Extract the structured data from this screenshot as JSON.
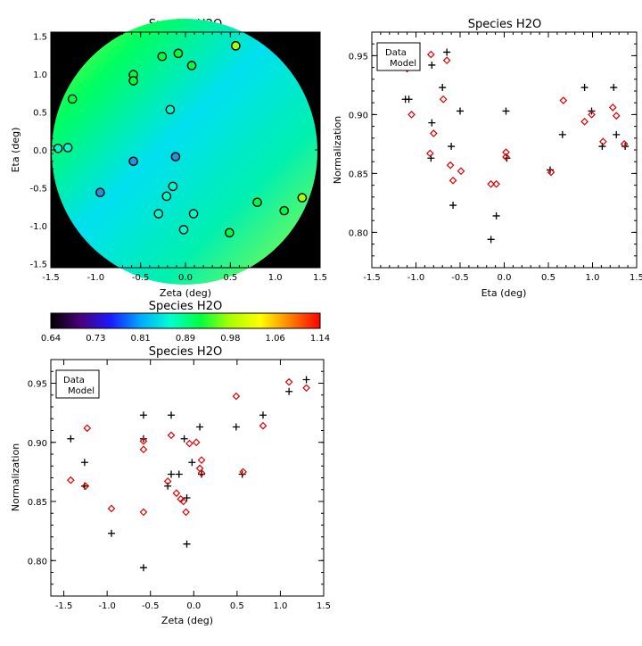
{
  "chart_data": [
    {
      "type": "scatter",
      "title": "Species H2O",
      "xlabel": "Zeta (deg)",
      "ylabel": "Eta (deg)",
      "xlim": [
        -1.5,
        1.5
      ],
      "ylim": [
        -1.55,
        1.55
      ],
      "xticks": [
        -1.5,
        -1.0,
        -0.5,
        0.0,
        0.5,
        1.0,
        1.5
      ],
      "xtick_labels": [
        "-1.5",
        "-1.0",
        "-0.5",
        "0.0",
        "0.5",
        "1.0",
        "1.5"
      ],
      "yticks": [
        -1.5,
        -1.0,
        -0.5,
        0.0,
        0.5,
        1.0,
        1.5
      ],
      "ytick_labels": [
        "-1.5",
        "-1.0",
        "-0.5",
        "0.0",
        "0.5",
        "1.0",
        "1.5"
      ],
      "background": "field map of normalization (colour scale shown in colorbar), black outside the circular field",
      "field_colors": {
        "outside": "#000000",
        "low": "#00e0f0",
        "mid": "#00f0b0",
        "high": "#00ff60",
        "edge": "#a0ff30"
      },
      "marker_fill_color": "#2ad6a8",
      "points": [
        {
          "zeta": -1.42,
          "eta": 0.02,
          "value": 0.87
        },
        {
          "zeta": -1.31,
          "eta": 0.03,
          "value": 0.88
        },
        {
          "zeta": -1.26,
          "eta": 0.67,
          "value": 0.92
        },
        {
          "zeta": -0.95,
          "eta": -0.56,
          "value": 0.82
        },
        {
          "zeta": -0.58,
          "eta": -0.15,
          "value": 0.79
        },
        {
          "zeta": -0.58,
          "eta": 0.99,
          "value": 0.89
        },
        {
          "zeta": -0.58,
          "eta": 0.91,
          "value": 0.89
        },
        {
          "zeta": -0.3,
          "eta": -0.84,
          "value": 0.87
        },
        {
          "zeta": -0.26,
          "eta": 1.23,
          "value": 0.92
        },
        {
          "zeta": -0.21,
          "eta": -0.61,
          "value": 0.86
        },
        {
          "zeta": -0.17,
          "eta": 0.53,
          "value": 0.85
        },
        {
          "zeta": -0.14,
          "eta": -0.48,
          "value": 0.86
        },
        {
          "zeta": -0.11,
          "eta": -0.09,
          "value": 0.81
        },
        {
          "zeta": -0.08,
          "eta": 1.27,
          "value": 0.92
        },
        {
          "zeta": -0.02,
          "eta": -1.05,
          "value": 0.88
        },
        {
          "zeta": 0.07,
          "eta": 1.11,
          "value": 0.91
        },
        {
          "zeta": 0.09,
          "eta": -0.84,
          "value": 0.87
        },
        {
          "zeta": 0.49,
          "eta": -1.09,
          "value": 0.9
        },
        {
          "zeta": 0.56,
          "eta": 1.37,
          "value": 0.95
        },
        {
          "zeta": 0.8,
          "eta": -0.69,
          "value": 0.9
        },
        {
          "zeta": 1.1,
          "eta": -0.8,
          "value": 0.93
        },
        {
          "zeta": 1.3,
          "eta": -0.63,
          "value": 0.95
        }
      ]
    },
    {
      "type": "scatter",
      "title": "Species H2O",
      "xlabel": "Eta (deg)",
      "ylabel": "Normalization",
      "xlim": [
        -1.5,
        1.5
      ],
      "ylim": [
        0.77,
        0.97
      ],
      "xticks": [
        -1.5,
        -1.0,
        -0.5,
        0.0,
        0.5,
        1.0,
        1.5
      ],
      "xtick_labels": [
        "-1.5",
        "-1.0",
        "-0.5",
        "0.0",
        "0.5",
        "1.0",
        "1.5"
      ],
      "yticks": [
        0.8,
        0.85,
        0.9,
        0.95
      ],
      "ytick_labels": [
        "0.80",
        "0.85",
        "0.90",
        "0.95"
      ],
      "legend_position": "top-left",
      "series": [
        {
          "name": "Data",
          "marker": "plus",
          "color": "#000000",
          "x": [
            -1.12,
            -1.08,
            -0.82,
            -0.83,
            -0.82,
            -0.7,
            -0.65,
            -0.6,
            -0.58,
            -0.5,
            -0.15,
            -0.09,
            0.02,
            0.03,
            0.52,
            0.66,
            0.91,
            0.99,
            1.11,
            1.24,
            1.27,
            1.37
          ],
          "y": [
            0.913,
            0.913,
            0.942,
            0.863,
            0.893,
            0.923,
            0.953,
            0.873,
            0.823,
            0.903,
            0.794,
            0.814,
            0.903,
            0.863,
            0.853,
            0.883,
            0.923,
            0.903,
            0.873,
            0.923,
            0.883,
            0.873
          ]
        },
        {
          "name": "Model",
          "marker": "diamond",
          "color": "#dd0000",
          "x": [
            -1.1,
            -1.05,
            -0.83,
            -0.8,
            -0.84,
            -0.69,
            -0.65,
            -0.61,
            -0.58,
            -0.49,
            -0.15,
            -0.09,
            0.02,
            0.02,
            0.53,
            0.67,
            0.91,
            0.99,
            1.12,
            1.23,
            1.27,
            1.36
          ],
          "y": [
            0.939,
            0.9,
            0.951,
            0.884,
            0.867,
            0.913,
            0.946,
            0.857,
            0.844,
            0.852,
            0.841,
            0.841,
            0.868,
            0.864,
            0.851,
            0.912,
            0.894,
            0.9,
            0.877,
            0.906,
            0.899,
            0.875
          ]
        }
      ]
    },
    {
      "type": "colorbar",
      "title": "Species H2O",
      "range": [
        0.64,
        1.14
      ],
      "tick_labels": [
        "0.64",
        "0.73",
        "0.81",
        "0.89",
        "0.98",
        "1.06",
        "1.14"
      ],
      "colormap": [
        "#000000",
        "#4a007a",
        "#1a1aff",
        "#00aaff",
        "#00ffd0",
        "#00ff40",
        "#aaff00",
        "#ffff00",
        "#ff8000",
        "#ff0000"
      ]
    },
    {
      "type": "scatter",
      "title": "Species H2O",
      "xlabel": "Zeta (deg)",
      "ylabel": "Normalization",
      "xlim": [
        -1.65,
        1.5
      ],
      "ylim": [
        0.77,
        0.97
      ],
      "xticks": [
        -1.5,
        -1.0,
        -0.5,
        0.0,
        0.5,
        1.0,
        1.5
      ],
      "xtick_labels": [
        "-1.5",
        "-1.0",
        "-0.5",
        "0.0",
        "0.5",
        "1.0",
        "1.5"
      ],
      "yticks": [
        0.8,
        0.85,
        0.9,
        0.95
      ],
      "ytick_labels": [
        "0.80",
        "0.85",
        "0.90",
        "0.95"
      ],
      "legend_position": "top-left",
      "series": [
        {
          "name": "Data",
          "marker": "plus",
          "color": "#000000",
          "x": [
            -1.42,
            -1.26,
            -1.26,
            -0.95,
            -0.58,
            -0.58,
            -0.58,
            -0.3,
            -0.26,
            -0.26,
            -0.17,
            -0.11,
            -0.08,
            -0.08,
            -0.02,
            0.07,
            0.09,
            0.49,
            0.56,
            0.8,
            1.1,
            1.3
          ],
          "y": [
            0.903,
            0.863,
            0.883,
            0.823,
            0.794,
            0.923,
            0.903,
            0.863,
            0.923,
            0.873,
            0.873,
            0.903,
            0.853,
            0.814,
            0.883,
            0.913,
            0.873,
            0.913,
            0.873,
            0.923,
            0.943,
            0.953
          ]
        },
        {
          "name": "Model",
          "marker": "diamond",
          "color": "#dd0000",
          "x": [
            -1.42,
            -1.25,
            -1.23,
            -0.95,
            -0.58,
            -0.58,
            -0.58,
            -0.3,
            -0.26,
            -0.2,
            -0.15,
            -0.12,
            -0.09,
            -0.05,
            0.03,
            0.07,
            0.09,
            0.09,
            0.49,
            0.57,
            0.8,
            1.1,
            1.3
          ],
          "y": [
            0.868,
            0.863,
            0.912,
            0.844,
            0.841,
            0.901,
            0.894,
            0.867,
            0.906,
            0.857,
            0.852,
            0.85,
            0.841,
            0.899,
            0.9,
            0.878,
            0.885,
            0.874,
            0.939,
            0.875,
            0.914,
            0.951,
            0.946
          ]
        }
      ]
    }
  ]
}
